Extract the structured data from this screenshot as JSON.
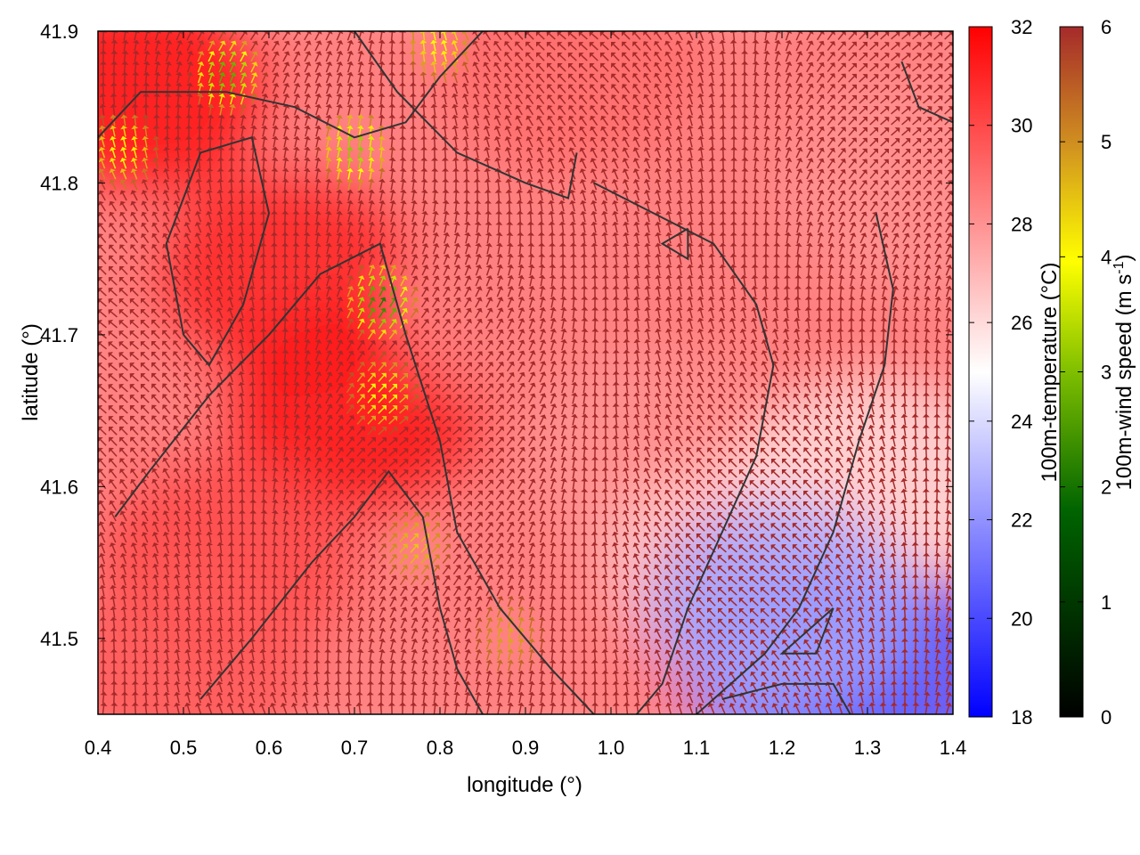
{
  "chart_data": {
    "type": "heatmap",
    "title": "",
    "xlabel": "longitude (°)",
    "ylabel": "latitude (°)",
    "xlim": [
      0.4,
      1.4
    ],
    "ylim": [
      41.45,
      41.9
    ],
    "xticks": [
      "0.4",
      "0.5",
      "0.6",
      "0.7",
      "0.8",
      "0.9",
      "1.0",
      "1.1",
      "1.2",
      "1.3",
      "1.4"
    ],
    "yticks": [
      "41.5",
      "41.6",
      "41.7",
      "41.8",
      "41.9"
    ],
    "grid": false,
    "colorbars": [
      {
        "label": "100m-temperature (°C)",
        "range": [
          18,
          32
        ],
        "ticks": [
          "18",
          "20",
          "22",
          "24",
          "26",
          "28",
          "30",
          "32"
        ],
        "colors": [
          "#0000ff",
          "#ffffff",
          "#ff0000"
        ]
      },
      {
        "label_main": "100m-wind speed (m s",
        "label_sup": "-1",
        "label_end": ")",
        "range": [
          0,
          6
        ],
        "ticks": [
          "0",
          "1",
          "2",
          "3",
          "4",
          "5",
          "6"
        ],
        "colors": [
          "#000000",
          "#006400",
          "#7fbf00",
          "#ffff00",
          "#d09020",
          "#a52a2a"
        ]
      }
    ],
    "temperature_field": [
      {
        "lon": 0.45,
        "lat": 41.86,
        "value": 31.5
      },
      {
        "lon": 0.62,
        "lat": 41.74,
        "value": 31.0
      },
      {
        "lon": 0.7,
        "lat": 41.65,
        "value": 31.5
      },
      {
        "lon": 0.55,
        "lat": 41.55,
        "value": 30.0
      },
      {
        "lon": 0.5,
        "lat": 41.48,
        "value": 29.5
      },
      {
        "lon": 0.95,
        "lat": 41.88,
        "value": 29.0
      },
      {
        "lon": 0.9,
        "lat": 41.72,
        "value": 28.5
      },
      {
        "lon": 1.05,
        "lat": 41.62,
        "value": 28.0
      },
      {
        "lon": 1.15,
        "lat": 41.55,
        "value": 26.5
      },
      {
        "lon": 1.35,
        "lat": 41.8,
        "value": 28.0
      },
      {
        "lon": 1.3,
        "lat": 41.6,
        "value": 26.0
      },
      {
        "lon": 1.24,
        "lat": 41.48,
        "value": 21.0
      },
      {
        "lon": 1.34,
        "lat": 41.47,
        "value": 20.5
      },
      {
        "lon": 1.2,
        "lat": 41.52,
        "value": 22.5
      }
    ],
    "wind_field": {
      "background_speed": 6,
      "slow_zones": [
        {
          "lon": 0.55,
          "lat": 41.87,
          "speed": 2.0
        },
        {
          "lon": 0.7,
          "lat": 41.82,
          "speed": 2.5
        },
        {
          "lon": 0.73,
          "lat": 41.72,
          "speed": 1.5
        },
        {
          "lon": 0.73,
          "lat": 41.66,
          "speed": 3.5
        },
        {
          "lon": 0.77,
          "lat": 41.56,
          "speed": 4.2
        },
        {
          "lon": 0.88,
          "lat": 41.5,
          "speed": 4.5
        },
        {
          "lon": 0.43,
          "lat": 41.82,
          "speed": 3.5
        },
        {
          "lon": 0.8,
          "lat": 41.89,
          "speed": 3.5
        }
      ]
    },
    "contour_lines": [
      [
        [
          0.4,
          41.83
        ],
        [
          0.45,
          41.86
        ],
        [
          0.55,
          41.86
        ],
        [
          0.63,
          41.85
        ],
        [
          0.7,
          41.83
        ],
        [
          0.76,
          41.84
        ],
        [
          0.8,
          41.87
        ],
        [
          0.85,
          41.9
        ]
      ],
      [
        [
          0.42,
          41.58
        ],
        [
          0.46,
          41.61
        ],
        [
          0.53,
          41.66
        ],
        [
          0.6,
          41.7
        ],
        [
          0.66,
          41.74
        ],
        [
          0.73,
          41.76
        ],
        [
          0.76,
          41.7
        ],
        [
          0.8,
          41.63
        ],
        [
          0.82,
          41.57
        ],
        [
          0.87,
          41.52
        ],
        [
          0.93,
          41.48
        ],
        [
          0.98,
          41.45
        ]
      ],
      [
        [
          0.5,
          41.7
        ],
        [
          0.48,
          41.76
        ],
        [
          0.52,
          41.82
        ],
        [
          0.58,
          41.83
        ],
        [
          0.6,
          41.78
        ],
        [
          0.57,
          41.72
        ],
        [
          0.53,
          41.68
        ],
        [
          0.5,
          41.7
        ]
      ],
      [
        [
          0.52,
          41.46
        ],
        [
          0.58,
          41.5
        ],
        [
          0.65,
          41.55
        ],
        [
          0.7,
          41.58
        ],
        [
          0.74,
          41.61
        ],
        [
          0.78,
          41.58
        ],
        [
          0.8,
          41.52
        ],
        [
          0.82,
          41.48
        ],
        [
          0.85,
          41.45
        ]
      ],
      [
        [
          0.7,
          41.9
        ],
        [
          0.75,
          41.86
        ],
        [
          0.82,
          41.82
        ],
        [
          0.9,
          41.8
        ],
        [
          0.95,
          41.79
        ],
        [
          0.96,
          41.82
        ]
      ],
      [
        [
          0.98,
          41.8
        ],
        [
          1.05,
          41.78
        ],
        [
          1.12,
          41.76
        ],
        [
          1.17,
          41.72
        ],
        [
          1.19,
          41.68
        ],
        [
          1.17,
          41.62
        ],
        [
          1.13,
          41.57
        ],
        [
          1.09,
          41.52
        ],
        [
          1.06,
          41.47
        ],
        [
          1.03,
          41.45
        ]
      ],
      [
        [
          1.31,
          41.78
        ],
        [
          1.33,
          41.73
        ],
        [
          1.32,
          41.68
        ],
        [
          1.29,
          41.63
        ],
        [
          1.26,
          41.57
        ],
        [
          1.22,
          41.52
        ],
        [
          1.18,
          41.49
        ],
        [
          1.14,
          41.47
        ],
        [
          1.1,
          41.45
        ]
      ],
      [
        [
          1.26,
          41.52
        ],
        [
          1.24,
          41.49
        ],
        [
          1.2,
          41.49
        ],
        [
          1.24,
          41.51
        ],
        [
          1.26,
          41.52
        ]
      ],
      [
        [
          1.13,
          41.46
        ],
        [
          1.2,
          41.47
        ],
        [
          1.26,
          41.47
        ],
        [
          1.28,
          41.45
        ]
      ],
      [
        [
          1.09,
          41.77
        ],
        [
          1.06,
          41.76
        ],
        [
          1.09,
          41.75
        ],
        [
          1.09,
          41.77
        ]
      ],
      [
        [
          1.34,
          41.88
        ],
        [
          1.36,
          41.85
        ],
        [
          1.4,
          41.84
        ]
      ]
    ]
  }
}
